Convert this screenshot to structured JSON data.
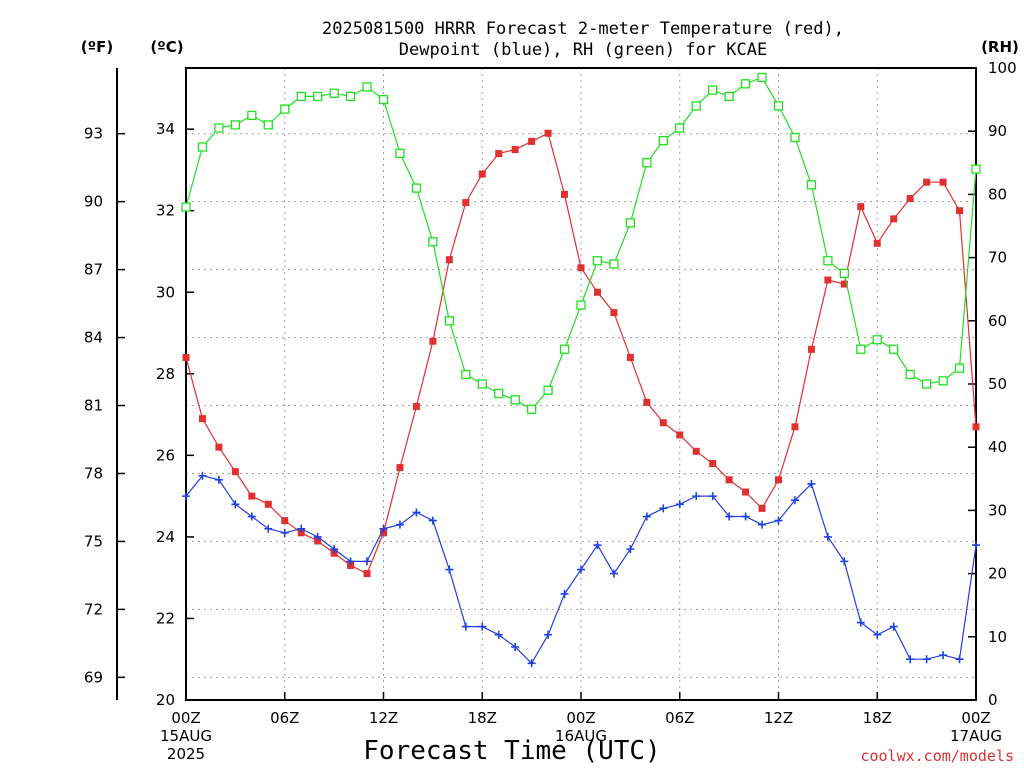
{
  "chart_data": {
    "type": "line",
    "title_line1": "2025081500 HRRR Forecast 2-meter Temperature (red),",
    "title_line2": "Dewpoint (blue), RH (green) for KCAE",
    "unit_f": "(ºF)",
    "unit_c": "(ºC)",
    "unit_rh": "(RH)",
    "xlabel": "Forecast Time (UTC)",
    "credit": "coolwx.com/models",
    "x_hours": [
      0,
      1,
      2,
      3,
      4,
      5,
      6,
      7,
      8,
      9,
      10,
      11,
      12,
      13,
      14,
      15,
      16,
      17,
      18,
      19,
      20,
      21,
      22,
      23,
      24,
      25,
      26,
      27,
      28,
      29,
      30,
      31,
      32,
      33,
      34,
      35,
      36,
      37,
      38,
      39,
      40,
      41,
      42,
      43,
      44,
      45,
      46,
      47,
      48
    ],
    "xlim": [
      0,
      48
    ],
    "ylim_c": [
      20,
      35.5
    ],
    "ylim_rh": [
      0,
      100
    ],
    "x_ticks": [
      {
        "hour": 0,
        "label": "00Z",
        "sub1": "15AUG",
        "sub2": "2025"
      },
      {
        "hour": 6,
        "label": "06Z",
        "sub1": "",
        "sub2": ""
      },
      {
        "hour": 12,
        "label": "12Z",
        "sub1": "",
        "sub2": ""
      },
      {
        "hour": 18,
        "label": "18Z",
        "sub1": "",
        "sub2": ""
      },
      {
        "hour": 24,
        "label": "00Z",
        "sub1": "16AUG",
        "sub2": ""
      },
      {
        "hour": 30,
        "label": "06Z",
        "sub1": "",
        "sub2": ""
      },
      {
        "hour": 36,
        "label": "12Z",
        "sub1": "",
        "sub2": ""
      },
      {
        "hour": 42,
        "label": "18Z",
        "sub1": "",
        "sub2": ""
      },
      {
        "hour": 48,
        "label": "00Z",
        "sub1": "17AUG",
        "sub2": ""
      }
    ],
    "c_ticks": [
      20,
      22,
      24,
      26,
      28,
      30,
      32,
      34
    ],
    "f_ticks": [
      69,
      72,
      75,
      78,
      81,
      84,
      87,
      90,
      93
    ],
    "rh_ticks": [
      0,
      10,
      20,
      30,
      40,
      50,
      60,
      70,
      80,
      90,
      100
    ],
    "grid": true,
    "series": [
      {
        "color": "#e03030",
        "marker": "filled-square",
        "axis": "c",
        "values": [
          28.4,
          26.9,
          26.2,
          25.6,
          25.0,
          24.8,
          24.4,
          24.1,
          23.9,
          23.6,
          23.3,
          23.1,
          24.1,
          25.7,
          27.2,
          28.8,
          30.8,
          32.2,
          32.9,
          33.4,
          33.5,
          33.7,
          33.9,
          32.4,
          30.6,
          30.0,
          29.5,
          28.4,
          27.3,
          26.8,
          26.5,
          26.1,
          25.8,
          25.4,
          25.1,
          24.7,
          25.4,
          26.7,
          28.6,
          30.3,
          30.2,
          32.1,
          31.2,
          31.8,
          32.3,
          32.7,
          32.7,
          32.0,
          26.7
        ]
      },
      {
        "color": "#2040e0",
        "marker": "plus",
        "axis": "c",
        "values": [
          25.0,
          25.5,
          25.4,
          24.8,
          24.5,
          24.2,
          24.1,
          24.2,
          24.0,
          23.7,
          23.4,
          23.4,
          24.2,
          24.3,
          24.6,
          24.4,
          23.2,
          21.8,
          21.8,
          21.6,
          21.3,
          20.9,
          21.6,
          22.6,
          23.2,
          23.8,
          23.1,
          23.7,
          24.5,
          24.7,
          24.8,
          25.0,
          25.0,
          24.5,
          24.5,
          24.3,
          24.4,
          24.9,
          25.3,
          24.0,
          23.4,
          21.9,
          21.6,
          21.8,
          21.0,
          21.0,
          21.1,
          21.0,
          23.8
        ]
      },
      {
        "color": "#20e020",
        "marker": "open-square",
        "axis": "rh",
        "values": [
          78.0,
          87.5,
          90.5,
          91.0,
          92.5,
          91.0,
          93.5,
          95.5,
          95.5,
          96.0,
          95.5,
          97.0,
          95.0,
          86.5,
          81.0,
          72.5,
          60.0,
          51.5,
          50.0,
          48.5,
          47.5,
          46.0,
          49.0,
          55.5,
          62.5,
          69.5,
          69.0,
          75.5,
          85.0,
          88.5,
          90.5,
          94.0,
          96.5,
          95.5,
          97.5,
          98.5,
          94.0,
          89.0,
          81.5,
          69.5,
          67.5,
          55.5,
          57.0,
          55.5,
          51.5,
          50.0,
          50.5,
          52.5,
          84.0
        ]
      }
    ]
  }
}
